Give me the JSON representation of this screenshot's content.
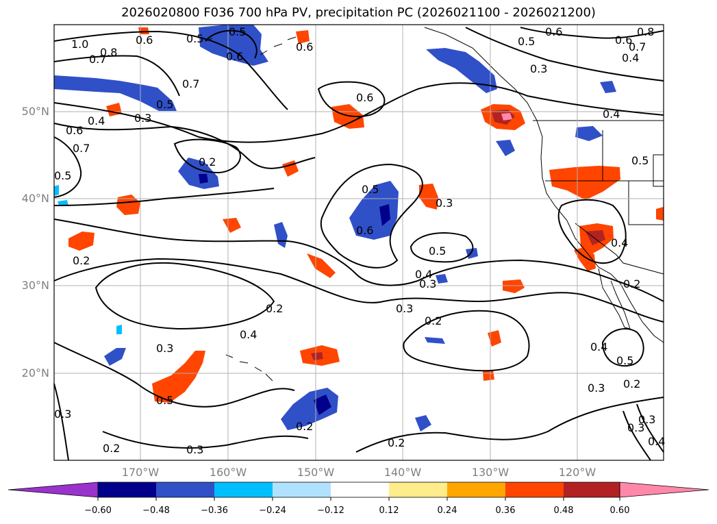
{
  "title": "2026020800 F036 700 hPa PV, precipitation PC (2026021100 - 2026021200)",
  "map": {
    "lat_labels": [
      "50°N",
      "40°N",
      "30°N",
      "20°N"
    ],
    "lon_labels": [
      "170°W",
      "160°W",
      "150°W",
      "140°W",
      "130°W",
      "120°W"
    ],
    "contour_labels": [
      "1.0",
      "0.5",
      "0.6",
      "0.6",
      "0.6",
      "0.8",
      "0.7",
      "0.7",
      "0.5",
      "0.3",
      "0.4",
      "0.6",
      "0.7",
      "0.5",
      "0.3",
      "0.2",
      "0.5",
      "0.6",
      "0.3",
      "0.4",
      "0.5",
      "0.2",
      "0.3",
      "0.4",
      "0.2",
      "0.3",
      "0.2",
      "0.4",
      "0.3",
      "0.2",
      "0.5",
      "0.2",
      "0.3",
      "0.2",
      "0.3",
      "0.4",
      "0.3",
      "0.5",
      "0.2",
      "0.2",
      "0.6",
      "0.8",
      "0.6",
      "0.5",
      "0.4",
      "0.4",
      "0.7",
      "0.6",
      "0.3",
      "0.5",
      "0.5",
      "0.3",
      "0.4"
    ]
  },
  "colorbar": {
    "ticks": [
      "−0.60",
      "−0.48",
      "−0.36",
      "−0.24",
      "−0.12",
      "0.12",
      "0.24",
      "0.36",
      "0.48",
      "0.60"
    ],
    "colors": [
      "#9933cc",
      "#00008b",
      "#3050c8",
      "#00bfff",
      "#b0e2ff",
      "#ffffff",
      "#ffec8b",
      "#ffa500",
      "#ff4500",
      "#b22222",
      "#ff88aa"
    ]
  }
}
